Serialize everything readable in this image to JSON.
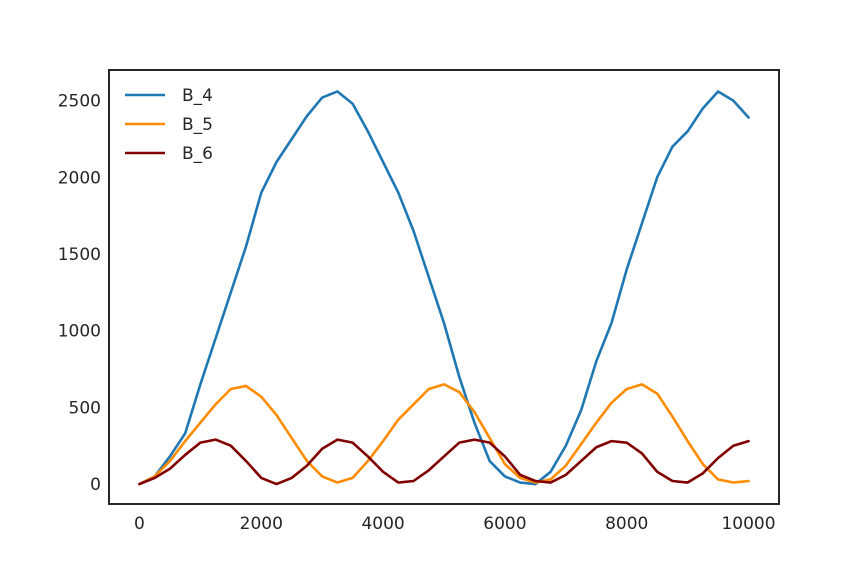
{
  "chart_data": {
    "type": "line",
    "title": "",
    "xlabel": "",
    "ylabel": "",
    "xlim": [
      -500,
      10500
    ],
    "ylim": [
      -130,
      2700
    ],
    "xticks": [
      0,
      2000,
      4000,
      6000,
      8000,
      10000
    ],
    "yticks": [
      0,
      500,
      1000,
      1500,
      2000,
      2500
    ],
    "xtick_labels": [
      "0",
      "2000",
      "4000",
      "6000",
      "8000",
      "10000"
    ],
    "ytick_labels": [
      "0",
      "500",
      "1000",
      "1500",
      "2000",
      "2500"
    ],
    "grid": false,
    "legend": {
      "position": "top-left"
    },
    "series": [
      {
        "name": "B_4",
        "color": "#1f77b4",
        "points": [
          [
            0,
            0
          ],
          [
            250,
            50
          ],
          [
            500,
            180
          ],
          [
            750,
            330
          ],
          [
            1000,
            650
          ],
          [
            1250,
            950
          ],
          [
            1500,
            1250
          ],
          [
            1750,
            1550
          ],
          [
            2000,
            1900
          ],
          [
            2250,
            2100
          ],
          [
            2500,
            2250
          ],
          [
            2750,
            2400
          ],
          [
            3000,
            2520
          ],
          [
            3250,
            2560
          ],
          [
            3500,
            2480
          ],
          [
            3750,
            2300
          ],
          [
            4000,
            2100
          ],
          [
            4250,
            1900
          ],
          [
            4500,
            1650
          ],
          [
            4750,
            1350
          ],
          [
            5000,
            1050
          ],
          [
            5250,
            700
          ],
          [
            5500,
            400
          ],
          [
            5750,
            150
          ],
          [
            6000,
            50
          ],
          [
            6250,
            10
          ],
          [
            6500,
            0
          ],
          [
            6750,
            80
          ],
          [
            7000,
            250
          ],
          [
            7250,
            480
          ],
          [
            7500,
            800
          ],
          [
            7750,
            1050
          ],
          [
            8000,
            1400
          ],
          [
            8250,
            1700
          ],
          [
            8500,
            2000
          ],
          [
            8750,
            2200
          ],
          [
            9000,
            2300
          ],
          [
            9250,
            2450
          ],
          [
            9500,
            2560
          ],
          [
            9750,
            2500
          ],
          [
            10000,
            2390
          ]
        ]
      },
      {
        "name": "B_5",
        "color": "#ff8c00",
        "points": [
          [
            0,
            0
          ],
          [
            250,
            50
          ],
          [
            500,
            150
          ],
          [
            750,
            280
          ],
          [
            1000,
            400
          ],
          [
            1250,
            520
          ],
          [
            1500,
            620
          ],
          [
            1750,
            640
          ],
          [
            2000,
            570
          ],
          [
            2250,
            450
          ],
          [
            2500,
            300
          ],
          [
            2750,
            150
          ],
          [
            3000,
            50
          ],
          [
            3250,
            10
          ],
          [
            3500,
            40
          ],
          [
            3750,
            150
          ],
          [
            4000,
            280
          ],
          [
            4250,
            420
          ],
          [
            4500,
            520
          ],
          [
            4750,
            620
          ],
          [
            5000,
            650
          ],
          [
            5250,
            600
          ],
          [
            5500,
            470
          ],
          [
            5750,
            300
          ],
          [
            6000,
            130
          ],
          [
            6250,
            40
          ],
          [
            6500,
            10
          ],
          [
            6750,
            30
          ],
          [
            7000,
            120
          ],
          [
            7250,
            260
          ],
          [
            7500,
            400
          ],
          [
            7750,
            530
          ],
          [
            8000,
            620
          ],
          [
            8250,
            650
          ],
          [
            8500,
            590
          ],
          [
            8750,
            440
          ],
          [
            9000,
            280
          ],
          [
            9250,
            130
          ],
          [
            9500,
            30
          ],
          [
            9750,
            10
          ],
          [
            10000,
            20
          ]
        ]
      },
      {
        "name": "B_6",
        "color": "#800000",
        "points": [
          [
            0,
            0
          ],
          [
            250,
            40
          ],
          [
            500,
            100
          ],
          [
            750,
            190
          ],
          [
            1000,
            270
          ],
          [
            1250,
            290
          ],
          [
            1500,
            250
          ],
          [
            1750,
            150
          ],
          [
            2000,
            40
          ],
          [
            2250,
            0
          ],
          [
            2500,
            40
          ],
          [
            2750,
            120
          ],
          [
            3000,
            230
          ],
          [
            3250,
            290
          ],
          [
            3500,
            270
          ],
          [
            3750,
            180
          ],
          [
            4000,
            80
          ],
          [
            4250,
            10
          ],
          [
            4500,
            20
          ],
          [
            4750,
            90
          ],
          [
            5000,
            180
          ],
          [
            5250,
            270
          ],
          [
            5500,
            290
          ],
          [
            5750,
            270
          ],
          [
            6000,
            180
          ],
          [
            6250,
            60
          ],
          [
            6500,
            20
          ],
          [
            6750,
            10
          ],
          [
            7000,
            60
          ],
          [
            7250,
            150
          ],
          [
            7500,
            240
          ],
          [
            7750,
            280
          ],
          [
            8000,
            270
          ],
          [
            8250,
            200
          ],
          [
            8500,
            80
          ],
          [
            8750,
            20
          ],
          [
            9000,
            10
          ],
          [
            9250,
            70
          ],
          [
            9500,
            170
          ],
          [
            9750,
            250
          ],
          [
            10000,
            280
          ]
        ]
      }
    ]
  }
}
